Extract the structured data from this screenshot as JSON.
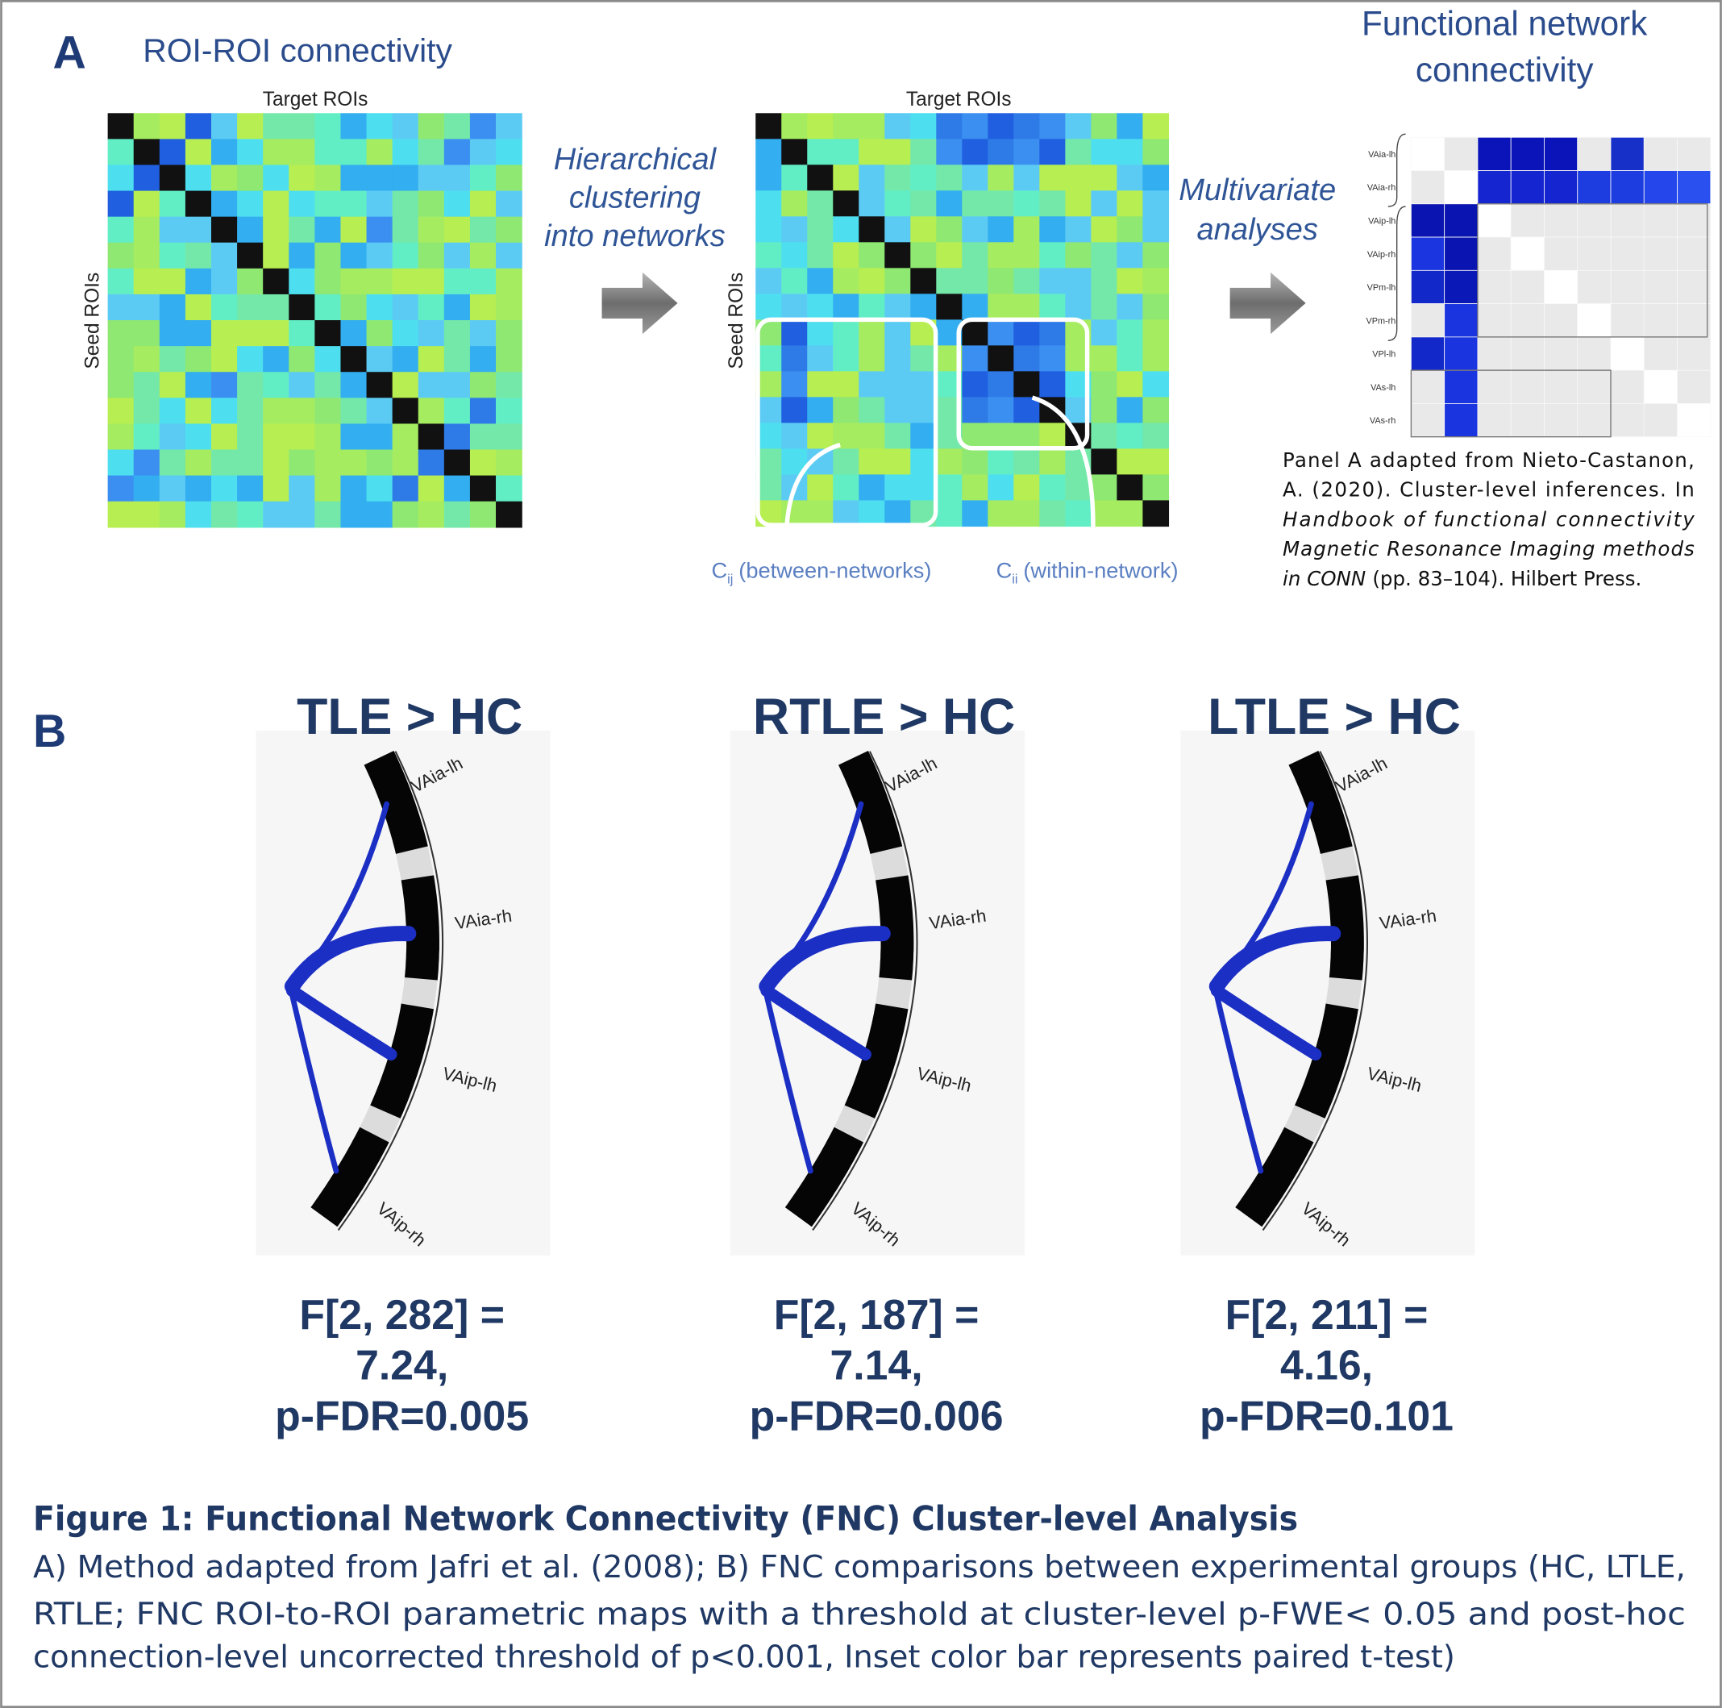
{
  "panel_a": {
    "label": "A",
    "title": "ROI-ROI connectivity",
    "matrix_x_label": "Target ROIs",
    "matrix_y_label": "Seed ROIs",
    "step1": [
      "Hierarchical",
      "clustering",
      "into networks"
    ],
    "step2": [
      "Multivariate",
      "analyses"
    ],
    "result_title": [
      "Functional network",
      "connectivity"
    ],
    "between": {
      "symbol": "C",
      "subscript": "ij",
      "text": "(between-networks)"
    },
    "within": {
      "symbol": "C",
      "subscript": "ii",
      "text": "(within-network)"
    },
    "fnc_rows": [
      "VAia-lh",
      "VAia-rh",
      "VAip-lh",
      "VAip-rh",
      "VPm-lh",
      "VPm-rh",
      "VPl-lh",
      "VAs-lh",
      "VAs-rh"
    ],
    "citation": {
      "intro": [
        "Panel A adapted from Nieto-Castanon,",
        "A. (2020). Cluster-level inferences. In"
      ],
      "book": [
        "Handbook of functional connectivity",
        "Magnetic Resonance Imaging methods",
        "in CONN"
      ],
      "publisher": "(pp. 83–104). Hilbert Press."
    }
  },
  "panel_b": {
    "label": "B",
    "comparisons": [
      {
        "title": "TLE > HC",
        "rois": [
          "VAia-lh",
          "VAia-rh",
          "VAip-lh",
          "VAip-rh"
        ],
        "stats": [
          "F[2, 282] =",
          "7.24,",
          "p-FDR=0.005"
        ]
      },
      {
        "title": "RTLE > HC",
        "rois": [
          "VAia-lh",
          "VAia-rh",
          "VAip-lh",
          "VAip-rh"
        ],
        "stats": [
          "F[2, 187] =",
          "7.14,",
          "p-FDR=0.006"
        ]
      },
      {
        "title": "LTLE > HC",
        "rois": [
          "VAia-lh",
          "VAia-rh",
          "VAip-lh",
          "VAip-rh"
        ],
        "stats": [
          "F[2, 211] =",
          "4.16,",
          "p-FDR=0.101"
        ]
      }
    ]
  },
  "caption": {
    "title": "Figure 1: Functional Network Connectivity (FNC) Cluster-level Analysis",
    "lines": [
      "A) Method adapted from Jafri et al. (2008); B) FNC comparisons between experimental groups (HC, LTLE,",
      "RTLE; FNC ROI-to-ROI parametric maps with a threshold at cluster-level p-FWE< 0.05 and post-hoc",
      "connection-level uncorrected threshold of p<0.001, Inset color bar represents paired t-test)"
    ]
  }
}
